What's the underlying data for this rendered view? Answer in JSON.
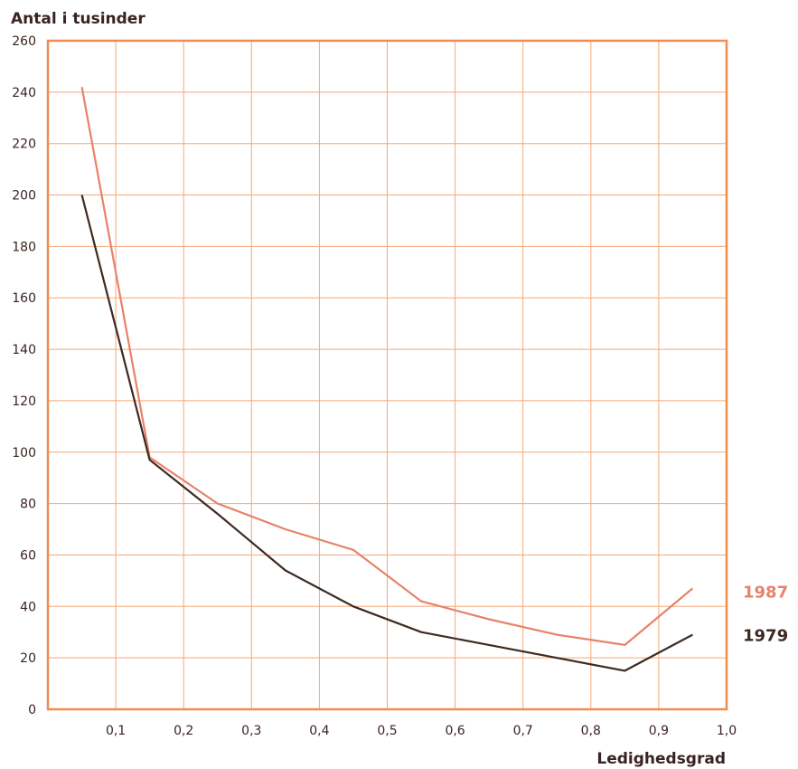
{
  "chart_data": {
    "type": "line",
    "ylabel": "Antal i tusinder",
    "xlabel": "Ledighedsgrad",
    "xlim": [
      0,
      1.0
    ],
    "ylim": [
      0,
      260
    ],
    "x_ticks": [
      "0,1",
      "0,2",
      "0,3",
      "0,4",
      "0,5",
      "0,6",
      "0,7",
      "0,8",
      "0,9",
      "1,0"
    ],
    "y_ticks": [
      "0",
      "20",
      "40",
      "60",
      "80",
      "100",
      "120",
      "140",
      "160",
      "180",
      "200",
      "220",
      "240",
      "260"
    ],
    "grid": true,
    "legend_placement": "right, at line ends",
    "series": [
      {
        "name": "1987",
        "color": "#e8826a",
        "x": [
          0.05,
          0.15,
          0.25,
          0.35,
          0.45,
          0.55,
          0.65,
          0.75,
          0.85,
          0.95
        ],
        "y": [
          242,
          98,
          80,
          70,
          62,
          42,
          35,
          29,
          25,
          47
        ]
      },
      {
        "name": "1979",
        "color": "#3d2a22",
        "x": [
          0.05,
          0.15,
          0.25,
          0.35,
          0.45,
          0.55,
          0.65,
          0.75,
          0.85,
          0.95
        ],
        "y": [
          200,
          97,
          76,
          54,
          40,
          30,
          25,
          20,
          15,
          29
        ]
      }
    ],
    "colors": {
      "frame": "#f08c50",
      "grid": "#f4a878",
      "text": "#3a2323"
    }
  }
}
